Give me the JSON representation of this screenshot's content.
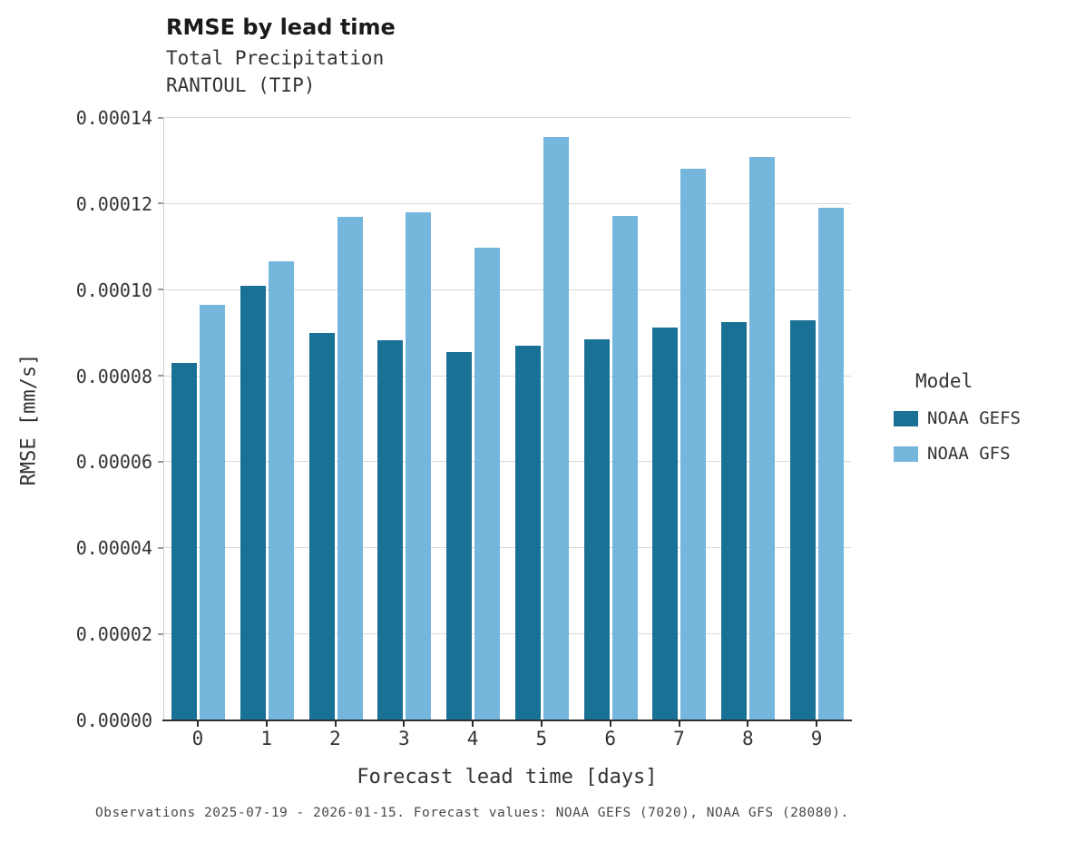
{
  "title": "RMSE by lead time",
  "subtitle_line1": "Total Precipitation",
  "subtitle_line2": "RANTOUL (TIP)",
  "caption": "Observations 2025-07-19 - 2026-01-15. Forecast values: NOAA GEFS (7020), NOAA GFS (28080).",
  "legend": {
    "title": "Model",
    "entries": [
      {
        "label": "NOAA GEFS",
        "color": "#1a7196"
      },
      {
        "label": "NOAA GFS",
        "color": "#74b6dc"
      }
    ]
  },
  "colors": {
    "gefs": "#1a7196",
    "gfs": "#74b6dc",
    "grid": "#d9d9d9",
    "axis": "#2f2f2f"
  },
  "chart_data": {
    "type": "bar",
    "title": "RMSE by lead time",
    "subtitle": "Total Precipitation — RANTOUL (TIP)",
    "xlabel": "Forecast lead time [days]",
    "ylabel": "RMSE [mm/s]",
    "categories": [
      "0",
      "1",
      "2",
      "3",
      "4",
      "5",
      "6",
      "7",
      "8",
      "9"
    ],
    "series": [
      {
        "name": "NOAA GEFS",
        "color": "#1a7196",
        "values": [
          8.3e-05,
          0.000101,
          9e-05,
          8.84e-05,
          8.56e-05,
          8.7e-05,
          8.86e-05,
          9.12e-05,
          9.26e-05,
          9.3e-05
        ]
      },
      {
        "name": "NOAA GFS",
        "color": "#74b6dc",
        "values": [
          9.65e-05,
          0.0001066,
          0.000117,
          0.000118,
          0.0001098,
          0.0001355,
          0.0001172,
          0.0001282,
          0.000131,
          0.0001192
        ]
      }
    ],
    "ylim": [
      0,
      0.00014
    ],
    "yticks": [
      0.0,
      2e-05,
      4e-05,
      6e-05,
      8e-05,
      0.0001,
      0.00012,
      0.00014
    ],
    "ytick_format_decimals": 5,
    "grid": true,
    "legend_title": "Model",
    "legend_position": "right"
  }
}
